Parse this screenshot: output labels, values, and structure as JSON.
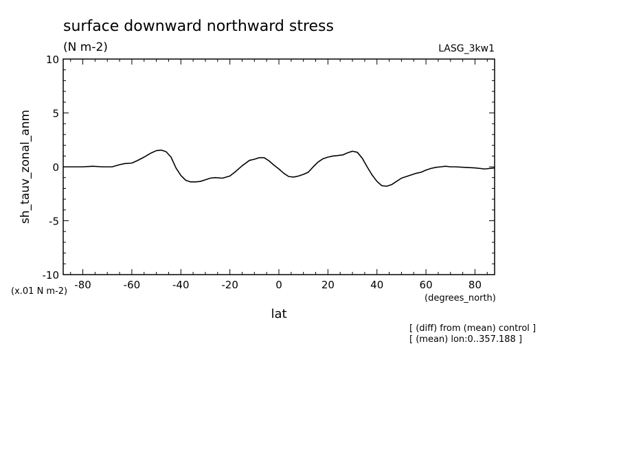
{
  "chart_data": {
    "type": "line",
    "title": "surface downward northward stress",
    "subtitle": "(N m-2)",
    "run_label": "LASG_3kw1",
    "xlabel": "lat",
    "x_units": "(degrees_north)",
    "ylabel": "sh_tauv_zonal_anm",
    "y_scale_note": "(x.01 N m-2)",
    "notes": [
      "[ (diff) from (mean) control ]",
      "[ (mean) lon:0..357.188 ]"
    ],
    "xlim": [
      -88,
      88
    ],
    "ylim": [
      -10,
      10
    ],
    "x_ticks": [
      -80,
      -60,
      -40,
      -20,
      0,
      20,
      40,
      60,
      80
    ],
    "x_tick_labels": [
      "-80",
      "-60",
      "-40",
      "-20",
      "0",
      "20",
      "40",
      "60",
      "80"
    ],
    "y_ticks": [
      -10,
      -5,
      0,
      5,
      10
    ],
    "y_tick_labels": [
      "-10",
      "-5",
      "0",
      "5",
      "10"
    ],
    "grid": false,
    "line_color": "#000000",
    "series": [
      {
        "x": [
          -88,
          -80,
          -76,
          -72,
          -68,
          -65,
          -63,
          -60,
          -58,
          -55,
          -52,
          -50,
          -48,
          -46,
          -44,
          -42,
          -40,
          -38,
          -36,
          -34,
          -32,
          -30,
          -28,
          -26,
          -23,
          -20,
          -18,
          -15,
          -12,
          -10,
          -8,
          -6,
          -4,
          -2,
          0,
          2,
          4,
          6,
          8,
          10,
          12,
          14,
          16,
          18,
          20,
          22,
          24,
          26,
          28,
          30,
          32,
          34,
          36,
          38,
          40,
          42,
          44,
          46,
          48,
          50,
          52,
          54,
          56,
          58,
          60,
          62,
          64,
          66,
          68,
          70,
          72,
          76,
          80,
          84,
          88
        ],
        "y": [
          0.0,
          0.0,
          0.05,
          0.0,
          0.0,
          0.2,
          0.3,
          0.35,
          0.55,
          0.9,
          1.3,
          1.5,
          1.55,
          1.4,
          0.9,
          -0.1,
          -0.8,
          -1.25,
          -1.4,
          -1.4,
          -1.35,
          -1.2,
          -1.05,
          -1.0,
          -1.05,
          -0.85,
          -0.5,
          0.1,
          0.6,
          0.7,
          0.85,
          0.85,
          0.55,
          0.15,
          -0.2,
          -0.6,
          -0.9,
          -0.95,
          -0.85,
          -0.7,
          -0.5,
          0.0,
          0.45,
          0.75,
          0.9,
          1.0,
          1.05,
          1.1,
          1.3,
          1.45,
          1.35,
          0.8,
          0.0,
          -0.75,
          -1.35,
          -1.75,
          -1.8,
          -1.65,
          -1.35,
          -1.05,
          -0.9,
          -0.75,
          -0.6,
          -0.5,
          -0.3,
          -0.15,
          -0.05,
          0.0,
          0.05,
          0.0,
          0.0,
          -0.05,
          -0.1,
          -0.2,
          -0.1
        ]
      }
    ]
  }
}
